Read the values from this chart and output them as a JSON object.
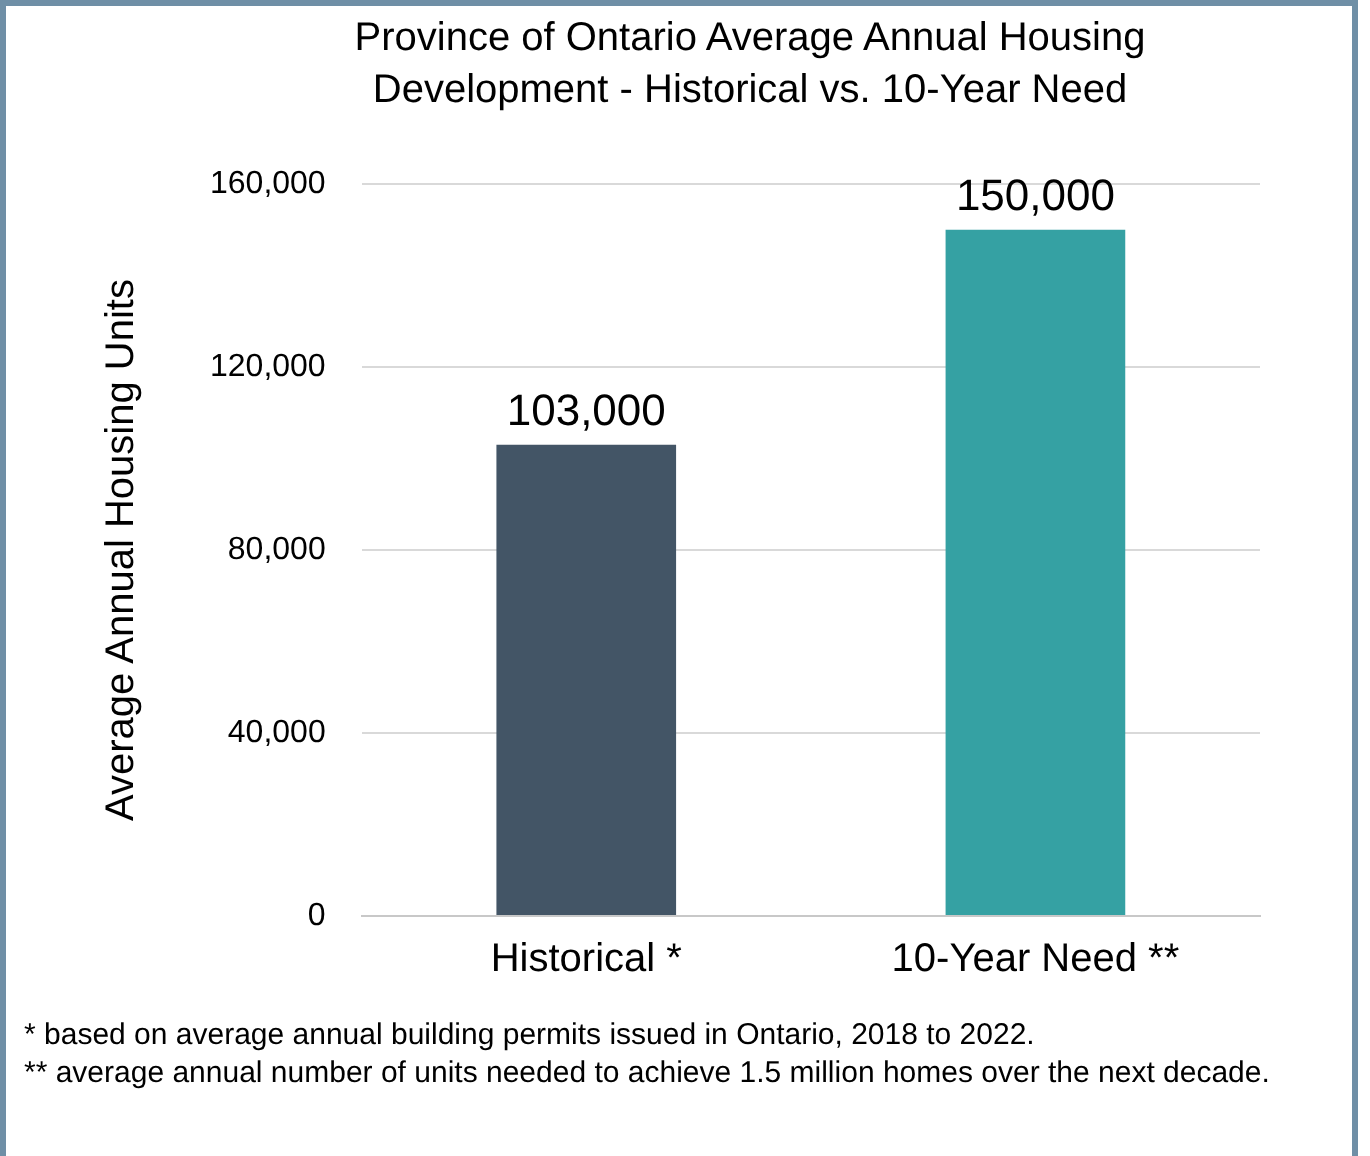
{
  "chart_data": {
    "type": "bar",
    "title": "Province of Ontario Average Annual Housing Development - Historical vs. 10-Year Need",
    "ylabel": "Average Annual Housing Units",
    "categories": [
      "Historical *",
      "10-Year Need **"
    ],
    "values": [
      103000,
      150000
    ],
    "colors": [
      "#435566",
      "#35a1a3"
    ],
    "value_labels": [
      "103,000",
      "150,000"
    ],
    "ylim": [
      0,
      160000
    ],
    "yticks": [
      0,
      {
        "value": 40000,
        "label": "40,000"
      },
      {
        "value": 80000,
        "label": "80,000"
      },
      {
        "value": 120000,
        "label": "120,000"
      },
      {
        "value": 160000,
        "label": "160,000"
      }
    ],
    "grid": "y",
    "legend": false,
    "annotations": [
      "*  based on average annual building permits issued in Ontario, 2018 to 2022.",
      "** average annual number of units needed to achieve 1.5 million homes over the next decade."
    ]
  }
}
